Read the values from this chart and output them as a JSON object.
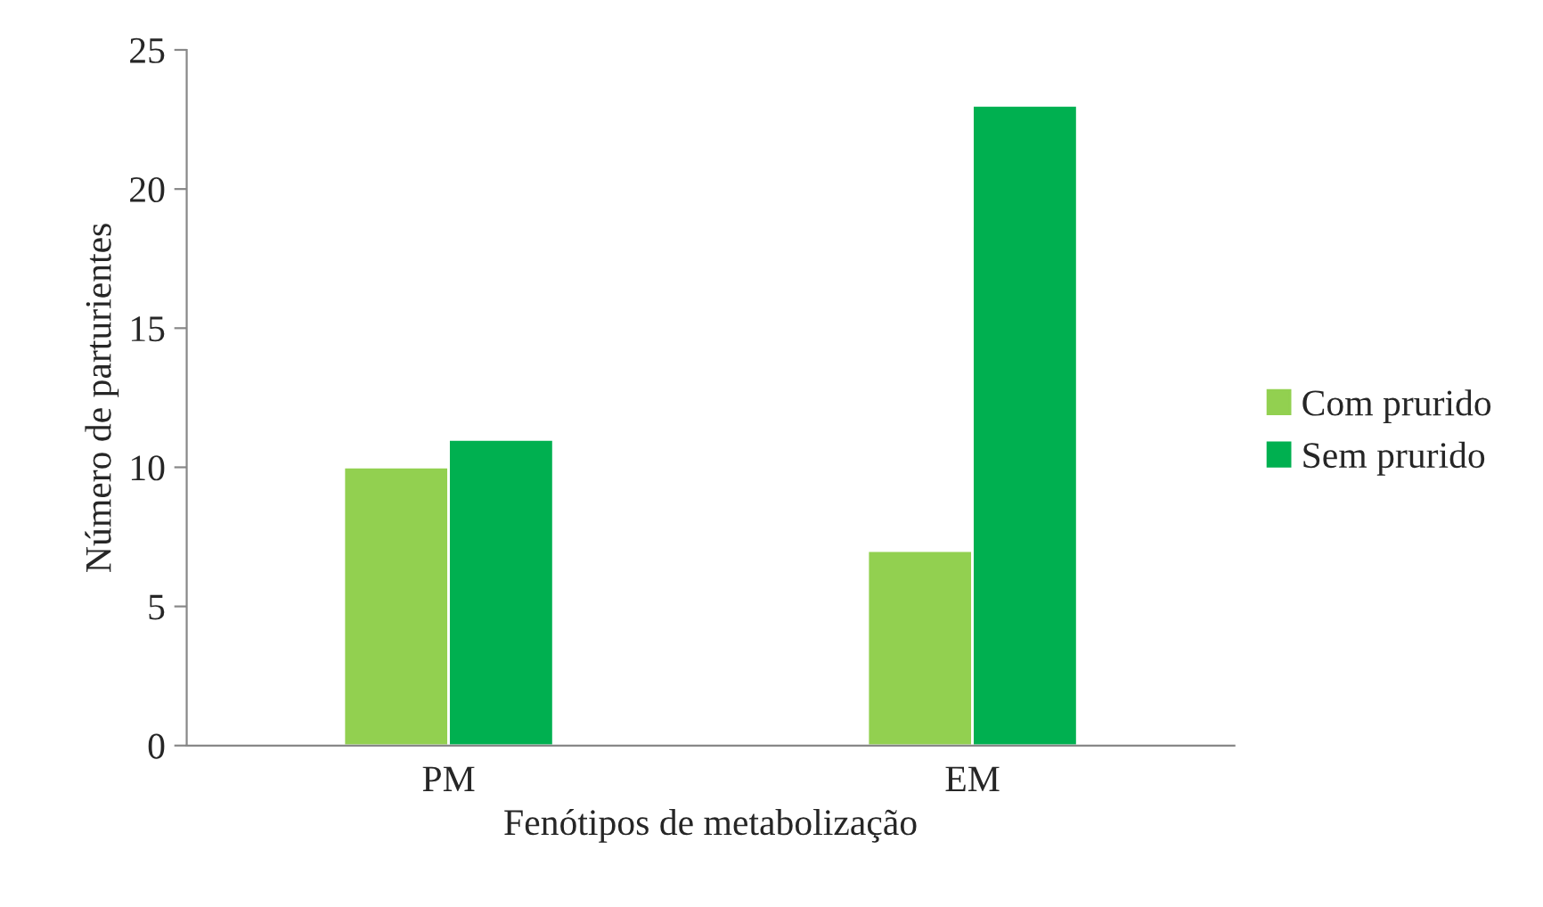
{
  "chart_data": {
    "type": "bar",
    "xlabel": "Fenótipos de metabolização",
    "ylabel": "Número de parturientes",
    "categories": [
      "PM",
      "EM"
    ],
    "series": [
      {
        "name": "Com prurido",
        "color": "#92d050",
        "values": [
          10,
          7
        ]
      },
      {
        "name": "Sem prurido",
        "color": "#00b050",
        "values": [
          11,
          23
        ]
      }
    ],
    "ylim": [
      0,
      25
    ],
    "yticks": [
      0,
      5,
      10,
      15,
      20,
      25
    ],
    "grid": false,
    "legend": "right"
  }
}
